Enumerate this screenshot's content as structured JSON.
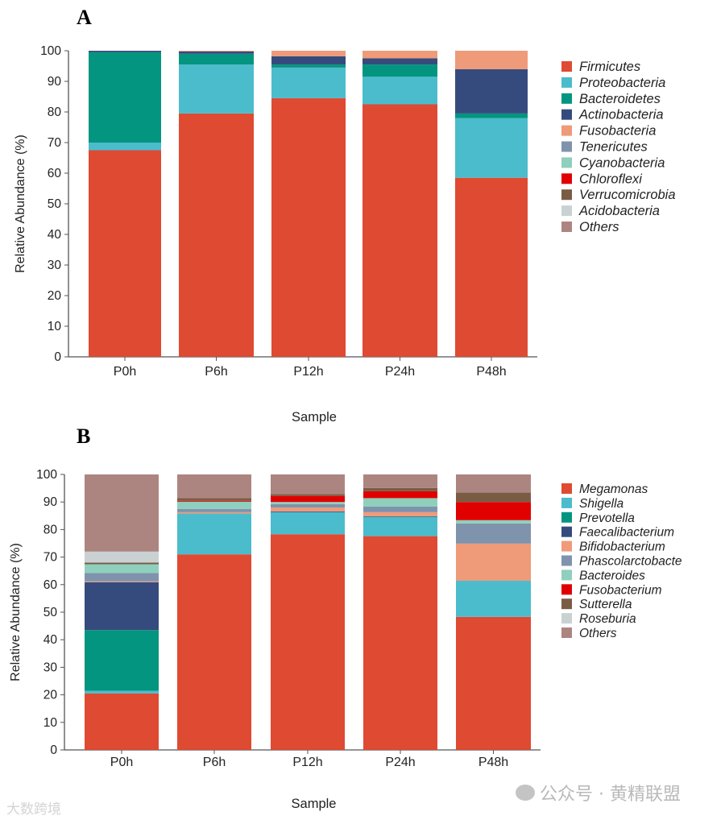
{
  "chart_data": [
    {
      "type": "bar",
      "stacked": true,
      "panel_label": "A",
      "title": "",
      "xlabel": "Sample",
      "ylabel": "Relative Abundance (%)",
      "ylim": [
        0,
        100
      ],
      "yticks": [
        "0",
        "10",
        "20",
        "30",
        "40",
        "50",
        "60",
        "70",
        "80",
        "90",
        "100"
      ],
      "categories": [
        "P0h",
        "P6h",
        "P12h",
        "P24h",
        "P48h"
      ],
      "legend_position": "right",
      "series": [
        {
          "name": "Firmicutes",
          "color": "#df4a32",
          "values": [
            67.5,
            79.5,
            84.5,
            82.5,
            58.5
          ]
        },
        {
          "name": "Proteobacteria",
          "color": "#4bbccc",
          "values": [
            2.5,
            16.0,
            10.0,
            9.0,
            19.5
          ]
        },
        {
          "name": "Bacteroidetes",
          "color": "#03957f",
          "values": [
            29.5,
            3.5,
            1.0,
            4.0,
            1.5
          ]
        },
        {
          "name": "Actinobacteria",
          "color": "#364b7d",
          "values": [
            0.5,
            0.8,
            2.7,
            2.0,
            14.5
          ]
        },
        {
          "name": "Fusobacteria",
          "color": "#ef9a78",
          "values": [
            0.0,
            0.2,
            1.8,
            2.5,
            6.0
          ]
        },
        {
          "name": "Tenericutes",
          "color": "#7f93ad",
          "values": [
            0,
            0,
            0,
            0,
            0
          ]
        },
        {
          "name": "Cyanobacteria",
          "color": "#8fcfbd",
          "values": [
            0,
            0,
            0,
            0,
            0
          ]
        },
        {
          "name": "Chloroflexi",
          "color": "#e00000",
          "values": [
            0,
            0,
            0,
            0,
            0
          ]
        },
        {
          "name": "Verrucomicrobia",
          "color": "#7a5c45",
          "values": [
            0,
            0,
            0,
            0,
            0
          ]
        },
        {
          "name": "Acidobacteria",
          "color": "#c9d1d3",
          "values": [
            0,
            0,
            0,
            0,
            0
          ]
        },
        {
          "name": "Others",
          "color": "#ad8580",
          "values": [
            0,
            0,
            0,
            0,
            0
          ]
        }
      ]
    },
    {
      "type": "bar",
      "stacked": true,
      "panel_label": "B",
      "title": "",
      "xlabel": "Sample",
      "ylabel": "Relative Abundance (%)",
      "ylim": [
        0,
        100
      ],
      "yticks": [
        "0",
        "10",
        "20",
        "30",
        "40",
        "50",
        "60",
        "70",
        "80",
        "90",
        "100"
      ],
      "categories": [
        "P0h",
        "P6h",
        "P12h",
        "P24h",
        "P48h"
      ],
      "legend_position": "right",
      "series": [
        {
          "name": "Megamonas",
          "color": "#df4a32",
          "values": [
            20.5,
            71.0,
            78.3,
            77.6,
            48.3
          ]
        },
        {
          "name": "Shigella",
          "color": "#4bbccc",
          "values": [
            1.0,
            14.8,
            8.0,
            7.0,
            13.1
          ]
        },
        {
          "name": "Prevotella",
          "color": "#03957f",
          "values": [
            22.0,
            0.0,
            0.0,
            0.0,
            0.0
          ]
        },
        {
          "name": "Faecalibacterium",
          "color": "#364b7d",
          "values": [
            17.4,
            0.0,
            0.3,
            0.2,
            0.0
          ]
        },
        {
          "name": "Bifidobacterium",
          "color": "#ef9a78",
          "values": [
            0.3,
            0.5,
            1.4,
            1.5,
            13.5
          ]
        },
        {
          "name": "Phascolarctobacte",
          "color": "#7f93ad",
          "values": [
            3.0,
            1.2,
            1.2,
            2.0,
            7.3
          ]
        },
        {
          "name": "Bacteroides",
          "color": "#8fcfbd",
          "values": [
            3.2,
            2.6,
            0.8,
            3.1,
            1.2
          ]
        },
        {
          "name": "Fusobacterium",
          "color": "#e00000",
          "values": [
            0.0,
            0.3,
            2.2,
            2.5,
            6.6
          ]
        },
        {
          "name": "Sutterella",
          "color": "#7a5c45",
          "values": [
            0.6,
            1.0,
            0.7,
            1.2,
            3.4
          ]
        },
        {
          "name": "Roseburia",
          "color": "#c9d1d3",
          "values": [
            4.0,
            0.0,
            0.0,
            0.0,
            0.0
          ]
        },
        {
          "name": "Others",
          "color": "#ad8580",
          "values": [
            28.0,
            8.6,
            7.1,
            4.9,
            6.6
          ]
        }
      ]
    }
  ],
  "watermarks": {
    "right": "公众号 · 黄精联盟",
    "left": "大数跨境"
  }
}
